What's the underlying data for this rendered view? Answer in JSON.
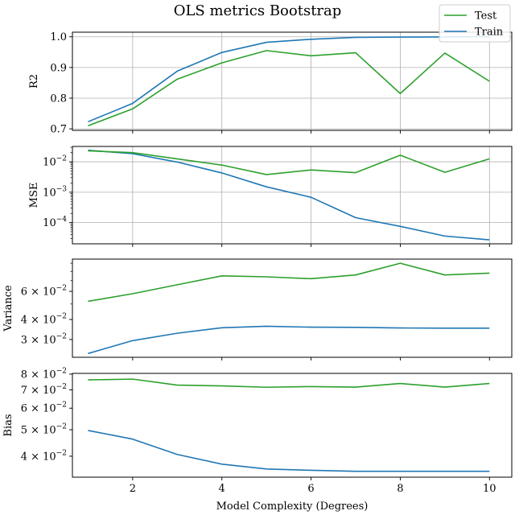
{
  "chart_data": {
    "type": "line",
    "title": "OLS metrics Bootstrap",
    "xlabel": "Model Complexity (Degrees)",
    "x": [
      1,
      2,
      3,
      4,
      5,
      6,
      7,
      8,
      9,
      10
    ],
    "x_ticks": [
      2,
      4,
      6,
      8,
      10
    ],
    "xlim": [
      0.65,
      10.5
    ],
    "grid": "on (top two panels)",
    "legend": {
      "placement": "top-right",
      "entries": [
        {
          "name": "Test",
          "color": "#2ca02c"
        },
        {
          "name": "Train",
          "color": "#1f77b4"
        }
      ]
    },
    "panels": [
      {
        "ylabel": "R2",
        "scale": "linear",
        "ylim": [
          0.695,
          1.015
        ],
        "grid": true,
        "yticks": [
          {
            "v": 0.7,
            "label": "0.7"
          },
          {
            "v": 0.8,
            "label": "0.8"
          },
          {
            "v": 0.9,
            "label": "0.9"
          },
          {
            "v": 1.0,
            "label": "1.0"
          }
        ],
        "series": [
          {
            "name": "Test",
            "color": "#2ca02c",
            "values": [
              0.71,
              0.765,
              0.862,
              0.915,
              0.955,
              0.938,
              0.948,
              0.815,
              0.947,
              0.855
            ]
          },
          {
            "name": "Train",
            "color": "#1f77b4",
            "values": [
              0.723,
              0.783,
              0.888,
              0.949,
              0.982,
              0.992,
              0.998,
              0.999,
              0.9995,
              1.0
            ]
          }
        ]
      },
      {
        "ylabel": "MSE",
        "scale": "log",
        "ylim": [
          2e-05,
          0.032
        ],
        "grid": true,
        "yticks": [
          {
            "v": 0.01,
            "label": "10^-2"
          },
          {
            "v": 0.001,
            "label": "10^-3"
          },
          {
            "v": 0.0001,
            "label": "10^-4"
          }
        ],
        "series": [
          {
            "name": "Test",
            "color": "#2ca02c",
            "values": [
              0.023,
              0.02,
              0.0125,
              0.0078,
              0.0038,
              0.0054,
              0.0044,
              0.0165,
              0.0045,
              0.0125
            ]
          },
          {
            "name": "Train",
            "color": "#1f77b4",
            "values": [
              0.024,
              0.0185,
              0.0098,
              0.0043,
              0.0015,
              0.00068,
              0.000145,
              7.5e-05,
              3.6e-05,
              2.7e-05
            ]
          }
        ]
      },
      {
        "ylabel": "Variance",
        "scale": "log",
        "ylim": [
          0.0232,
          0.0955
        ],
        "grid": false,
        "yticks": [
          {
            "v": 0.06,
            "label": "6 × 10^-2"
          },
          {
            "v": 0.04,
            "label": "4 × 10^-2"
          },
          {
            "v": 0.03,
            "label": "3 × 10^-2"
          }
        ],
        "series": [
          {
            "name": "Test",
            "color": "#2ca02c",
            "values": [
              0.052,
              0.058,
              0.066,
              0.075,
              0.074,
              0.072,
              0.076,
              0.09,
              0.076,
              0.078
            ]
          },
          {
            "name": "Train",
            "color": "#1f77b4",
            "values": [
              0.0245,
              0.0295,
              0.0328,
              0.0355,
              0.0363,
              0.0358,
              0.0357,
              0.0354,
              0.0353,
              0.0353
            ]
          }
        ]
      },
      {
        "ylabel": "Bias",
        "scale": "log",
        "ylim": [
          0.0335,
          0.0805
        ],
        "grid": false,
        "yticks": [
          {
            "v": 0.08,
            "label": "8 × 10^-2"
          },
          {
            "v": 0.07,
            "label": "7 × 10^-2"
          },
          {
            "v": 0.06,
            "label": "6 × 10^-2"
          },
          {
            "v": 0.05,
            "label": "5 × 10^-2"
          },
          {
            "v": 0.04,
            "label": "4 × 10^-2"
          }
        ],
        "series": [
          {
            "name": "Test",
            "color": "#2ca02c",
            "values": [
              0.0762,
              0.0767,
              0.0729,
              0.0724,
              0.0716,
              0.072,
              0.0717,
              0.0739,
              0.0717,
              0.0739
            ]
          },
          {
            "name": "Train",
            "color": "#1f77b4",
            "values": [
              0.0497,
              0.0462,
              0.0406,
              0.0374,
              0.0359,
              0.0355,
              0.0352,
              0.0352,
              0.0352,
              0.0352
            ]
          }
        ]
      }
    ]
  }
}
